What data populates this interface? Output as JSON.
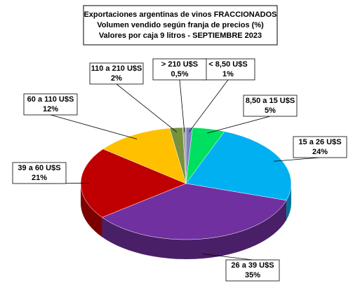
{
  "chart_data": {
    "type": "pie3d",
    "title": "Exportaciones argentinas de vinos FRACCIONADOS",
    "subtitle": [
      "Volumen vendido según franja de precios (%)",
      "Valores por caja 9 litros -  SEPTIEMBRE 2023"
    ],
    "categories": [
      "< 8,50 U$S",
      "8,50 a 15 U$S",
      "15 a 26 U$S",
      "26 a 39 U$S",
      "39 a 60 U$S",
      "60 a 110 U$S",
      "110 a 210 U$S",
      "> 210 U$S"
    ],
    "values": [
      1,
      5,
      24,
      35,
      21,
      12,
      2,
      0.5
    ],
    "value_labels": [
      "1%",
      "5%",
      "24%",
      "35%",
      "21%",
      "12%",
      "2%",
      "0,5%"
    ],
    "colors": [
      "#7f7fc0",
      "#00e060",
      "#00b0f0",
      "#7030a0",
      "#c00000",
      "#ffc000",
      "#76923c",
      "#a6a6a6"
    ]
  }
}
